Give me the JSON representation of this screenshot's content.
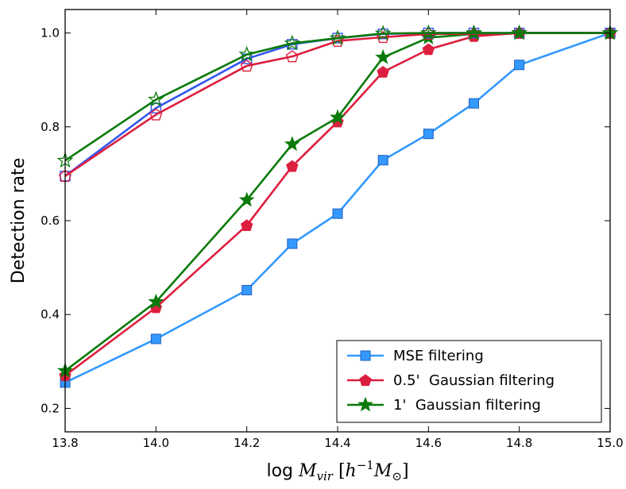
{
  "chart_data": {
    "type": "line",
    "xlabel_prefix": "log ",
    "xlabel_math_main": "M",
    "xlabel_math_sub": "vir",
    "xlabel_bracket_open": " [",
    "xlabel_h": "h",
    "xlabel_h_exp": "−1",
    "xlabel_msun": "M",
    "xlabel_msun_sub": "⊙",
    "xlabel_bracket_close": "]",
    "ylabel": "Detection rate",
    "xlim": [
      13.8,
      15.0
    ],
    "ylim": [
      0.15,
      1.05
    ],
    "xticks": [
      13.8,
      14.0,
      14.2,
      14.4,
      14.6,
      14.8,
      15.0
    ],
    "xtick_labels": [
      "13.8",
      "14.0",
      "14.2",
      "14.4",
      "14.6",
      "14.8",
      "15.0"
    ],
    "yticks": [
      0.2,
      0.4,
      0.6,
      0.8,
      1.0
    ],
    "ytick_labels": [
      "0.2",
      "0.4",
      "0.6",
      "0.8",
      "1.0"
    ],
    "legend_position": "lower-right",
    "series": [
      {
        "name": "MSE filtering",
        "key": "mse",
        "color": "#3399ff",
        "marker": "square",
        "filled": true,
        "in_legend": true,
        "x": [
          13.8,
          14.0,
          14.2,
          14.3,
          14.4,
          14.5,
          14.6,
          14.7,
          14.8,
          15.0
        ],
        "values": [
          0.255,
          0.348,
          0.452,
          0.551,
          0.615,
          0.729,
          0.785,
          0.85,
          0.932,
          1.0
        ]
      },
      {
        "name": "0.5'  Gaussian filtering",
        "key": "g05",
        "color": "#dd1f3f",
        "marker": "pentagon",
        "filled": true,
        "in_legend": true,
        "x": [
          13.8,
          14.0,
          14.2,
          14.3,
          14.4,
          14.5,
          14.6,
          14.7,
          14.8,
          15.0
        ],
        "values": [
          0.27,
          0.415,
          0.59,
          0.716,
          0.811,
          0.917,
          0.965,
          0.993,
          1.0,
          1.0
        ]
      },
      {
        "name": "1'  Gaussian filtering",
        "key": "g1",
        "color": "#0a7a0a",
        "marker": "star",
        "filled": true,
        "in_legend": true,
        "x": [
          13.8,
          14.0,
          14.2,
          14.3,
          14.4,
          14.5,
          14.6,
          14.7,
          14.8,
          15.0
        ],
        "values": [
          0.28,
          0.427,
          0.644,
          0.763,
          0.82,
          0.948,
          0.99,
          0.998,
          1.0,
          1.0
        ]
      },
      {
        "name": "MSE filtering (open)",
        "key": "mse_open",
        "color": "#3355ee",
        "marker": "square",
        "filled": false,
        "in_legend": false,
        "x": [
          13.8,
          14.0,
          14.2,
          14.3,
          14.4,
          14.5,
          14.6,
          14.7,
          14.8,
          15.0
        ],
        "values": [
          0.695,
          0.84,
          0.945,
          0.976,
          0.989,
          0.998,
          1.0,
          1.0,
          1.0,
          1.0
        ]
      },
      {
        "name": "0.5' Gaussian filtering (open)",
        "key": "g05_open",
        "color": "#dd1f3f",
        "marker": "pentagon",
        "filled": false,
        "in_legend": false,
        "x": [
          13.8,
          14.0,
          14.2,
          14.3,
          14.4,
          14.5,
          14.6,
          14.7,
          14.8,
          15.0
        ],
        "values": [
          0.695,
          0.826,
          0.93,
          0.95,
          0.983,
          0.991,
          0.998,
          0.998,
          1.0,
          1.0
        ]
      },
      {
        "name": "1' Gaussian filtering (open)",
        "key": "g1_open",
        "color": "#0a7a0a",
        "marker": "star",
        "filled": false,
        "in_legend": false,
        "x": [
          13.8,
          14.0,
          14.2,
          14.3,
          14.4,
          14.5,
          14.6,
          14.7,
          14.8,
          15.0
        ],
        "values": [
          0.728,
          0.858,
          0.954,
          0.978,
          0.989,
          0.999,
          1.0,
          1.0,
          1.0,
          1.0
        ]
      }
    ]
  }
}
